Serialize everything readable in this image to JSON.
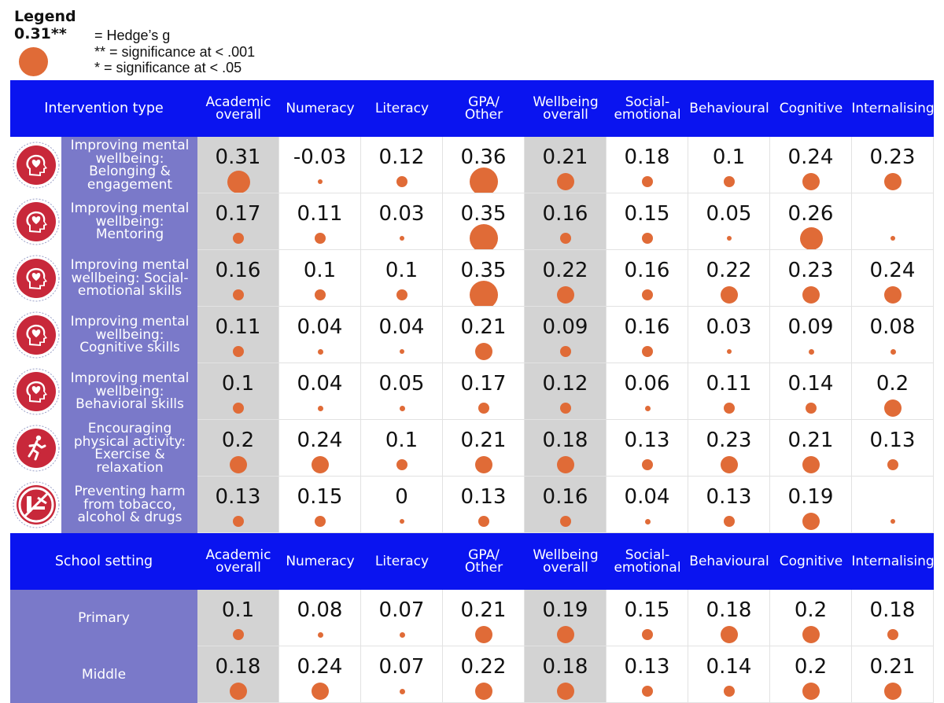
{
  "legend": {
    "title": "Legend",
    "sample_value": "0.31**",
    "line1": "= Hedge’s g",
    "line2": "** = significance at < .001",
    "line3": "* = significance at < .05",
    "dot_color": "#e06b37"
  },
  "colors": {
    "header_bg": "#0a14f0",
    "row_label_bg": "#7a79c9",
    "shaded_column_bg": "#d3d3d3",
    "dot": "#e06b37",
    "icon_red": "#c8283a"
  },
  "chart_data": {
    "type": "table",
    "columns": [
      "Academic\noverall",
      "Numeracy",
      "Literacy",
      "GPA/\nOther",
      "Wellbeing\noverall",
      "Social-\nemotional",
      "Behavioural",
      "Cognitive",
      "Internalising"
    ],
    "shaded_columns": [
      0,
      4
    ],
    "sections": [
      {
        "header": "Intervention type",
        "rows": [
          {
            "label": "Improving mental wellbeing: Belonging & engagement",
            "icon": "head-heart-icon",
            "values": [
              "0.31",
              "-0.03",
              "0.12",
              "0.36",
              "0.21",
              "0.18",
              "0.1",
              "0.24",
              "0.23"
            ],
            "dot_sizes": [
              3,
              0,
              1,
              4,
              2,
              1,
              1,
              2,
              2
            ]
          },
          {
            "label": "Improving mental wellbeing: Mentoring",
            "icon": "head-heart-icon",
            "values": [
              "0.17",
              "0.11",
              "0.03",
              "0.35",
              "0.16",
              "0.15",
              "0.05",
              "0.26",
              ""
            ],
            "dot_sizes": [
              1,
              1,
              0,
              4,
              1,
              1,
              0,
              3,
              0
            ]
          },
          {
            "label": "Improving mental wellbeing: Social-emotional skills",
            "icon": "head-heart-icon",
            "values": [
              "0.16",
              "0.1",
              "0.1",
              "0.35",
              "0.22",
              "0.16",
              "0.22",
              "0.23",
              "0.24"
            ],
            "dot_sizes": [
              1,
              1,
              1,
              4,
              2,
              1,
              2,
              2,
              2
            ]
          },
          {
            "label": "Improving mental wellbeing: Cognitive skills",
            "icon": "head-heart-icon",
            "values": [
              "0.11",
              "0.04",
              "0.04",
              "0.21",
              "0.09",
              "0.16",
              "0.03",
              "0.09",
              "0.08"
            ],
            "dot_sizes": [
              1,
              0.5,
              0,
              2,
              1,
              1,
              0,
              0.5,
              0.5
            ]
          },
          {
            "label": "Improving mental wellbeing: Behavioral skills",
            "icon": "head-heart-icon",
            "values": [
              "0.1",
              "0.04",
              "0.05",
              "0.17",
              "0.12",
              "0.06",
              "0.11",
              "0.14",
              "0.2"
            ],
            "dot_sizes": [
              1,
              0.5,
              0.5,
              1,
              1,
              0.5,
              1,
              1,
              2
            ]
          },
          {
            "label": "Encouraging physical activity: Exercise & relaxation",
            "icon": "running-person-icon",
            "values": [
              "0.2",
              "0.24",
              "0.1",
              "0.21",
              "0.18",
              "0.13",
              "0.23",
              "0.21",
              "0.13"
            ],
            "dot_sizes": [
              2,
              2,
              1,
              2,
              2,
              1,
              2,
              2,
              1
            ]
          },
          {
            "label": "Preventing harm from tobacco, alcohol & drugs",
            "icon": "no-tobacco-alcohol-drugs-icon",
            "values": [
              "0.13",
              "0.15",
              "0",
              "0.13",
              "0.16",
              "0.04",
              "0.13",
              "0.19",
              ""
            ],
            "dot_sizes": [
              1,
              1,
              0,
              1,
              1,
              0.5,
              1,
              2,
              0
            ]
          }
        ]
      },
      {
        "header": "School setting",
        "rows": [
          {
            "label": "Primary",
            "icon": "",
            "values": [
              "0.1",
              "0.08",
              "0.07",
              "0.21",
              "0.19",
              "0.15",
              "0.18",
              "0.2",
              "0.18"
            ],
            "dot_sizes": [
              1,
              0.5,
              0.5,
              2,
              2,
              1,
              2,
              2,
              1
            ]
          },
          {
            "label": "Middle",
            "icon": "",
            "values": [
              "0.18",
              "0.24",
              "0.07",
              "0.22",
              "0.18",
              "0.13",
              "0.14",
              "0.2",
              "0.21"
            ],
            "dot_sizes": [
              2,
              2,
              0.5,
              2,
              2,
              1,
              1,
              2,
              2
            ]
          }
        ]
      }
    ]
  }
}
